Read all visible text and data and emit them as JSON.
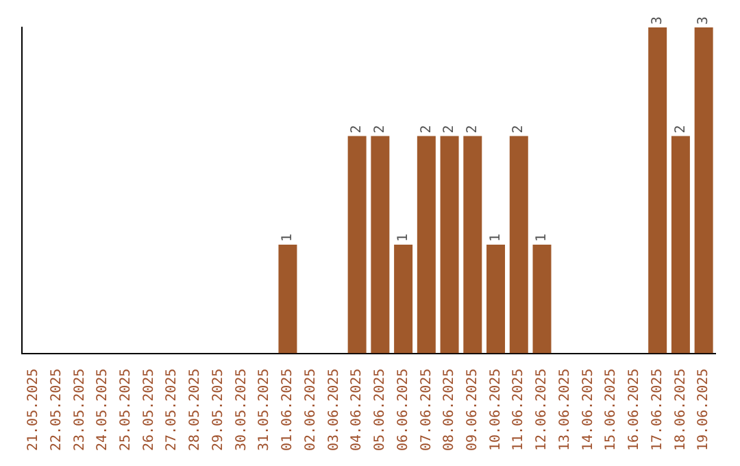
{
  "chart_data": {
    "type": "bar",
    "categories": [
      "21.05.2025",
      "22.05.2025",
      "23.05.2025",
      "24.05.2025",
      "25.05.2025",
      "26.05.2025",
      "27.05.2025",
      "28.05.2025",
      "29.05.2025",
      "30.05.2025",
      "31.05.2025",
      "01.06.2025",
      "02.06.2025",
      "03.06.2025",
      "04.06.2025",
      "05.06.2025",
      "06.06.2025",
      "07.06.2025",
      "08.06.2025",
      "09.06.2025",
      "10.06.2025",
      "11.06.2025",
      "12.06.2025",
      "13.06.2025",
      "14.06.2025",
      "15.06.2025",
      "16.06.2025",
      "17.06.2025",
      "18.06.2025",
      "19.06.2025"
    ],
    "values": [
      0,
      0,
      0,
      0,
      0,
      0,
      0,
      0,
      0,
      0,
      0,
      1,
      0,
      0,
      2,
      2,
      1,
      2,
      2,
      2,
      1,
      2,
      1,
      0,
      0,
      0,
      0,
      3,
      2,
      3
    ],
    "value_labels": [
      null,
      null,
      null,
      null,
      null,
      null,
      null,
      null,
      null,
      null,
      null,
      "1",
      null,
      null,
      "2",
      "2",
      "1",
      "2",
      "2",
      "2",
      "1",
      "2",
      "1",
      null,
      null,
      null,
      null,
      "3",
      "2",
      "3"
    ],
    "color": "#a0592b",
    "grid": false,
    "legend": false
  }
}
